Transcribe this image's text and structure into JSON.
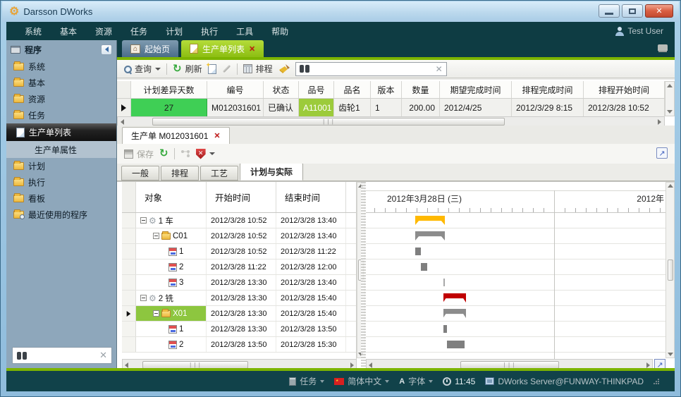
{
  "window": {
    "title": "Darsson DWorks",
    "user": "Test User"
  },
  "menu": {
    "items": [
      "系统",
      "基本",
      "资源",
      "任务",
      "计划",
      "执行",
      "工具",
      "帮助"
    ]
  },
  "sidebar": {
    "header": "程序",
    "items": [
      {
        "label": "系统"
      },
      {
        "label": "基本"
      },
      {
        "label": "资源"
      },
      {
        "label": "任务"
      },
      {
        "label": "生产单列表",
        "selected": true
      },
      {
        "label": "生产单属性",
        "child": true
      },
      {
        "label": "计划"
      },
      {
        "label": "执行"
      },
      {
        "label": "看板"
      },
      {
        "label": "最近使用的程序"
      }
    ]
  },
  "tabs": {
    "home": "起始页",
    "active": "生产单列表"
  },
  "toolbar": {
    "query": "查询",
    "refresh": "刷新",
    "schedule": "排程",
    "search_value": ""
  },
  "grid": {
    "columns": [
      "计划差异天数",
      "编号",
      "状态",
      "品号",
      "品名",
      "版本",
      "数量",
      "期望完成时间",
      "排程完成时间",
      "排程开始时间"
    ],
    "row": {
      "diff_days": "27",
      "code": "M012031601",
      "status": "已确认",
      "item_no": "A11001",
      "item_name": "齿轮1",
      "version": "1",
      "qty": "200.00",
      "expect_finish": "2012/4/25",
      "sched_finish": "2012/3/29 8:15",
      "sched_start": "2012/3/28 10:52"
    }
  },
  "detail": {
    "tab_title": "生产单  M012031601",
    "save_label": "保存",
    "tabs": [
      "一般",
      "排程",
      "工艺",
      "计划与实际"
    ],
    "active_tab": "计划与实际"
  },
  "tree": {
    "columns": [
      "对象",
      "开始时间",
      "结束时间"
    ],
    "rows": [
      {
        "label": "1 车",
        "start": "2012/3/28 10:52",
        "end": "2012/3/28 13:40"
      },
      {
        "label": "C01",
        "start": "2012/3/28 10:52",
        "end": "2012/3/28 13:40"
      },
      {
        "label": "1",
        "start": "2012/3/28 10:52",
        "end": "2012/3/28 11:22"
      },
      {
        "label": "2",
        "start": "2012/3/28 11:22",
        "end": "2012/3/28 12:00"
      },
      {
        "label": "3",
        "start": "2012/3/28 13:30",
        "end": "2012/3/28 13:40"
      },
      {
        "label": "2 铣",
        "start": "2012/3/28 13:30",
        "end": "2012/3/28 15:40"
      },
      {
        "label": "X01",
        "start": "2012/3/28 13:30",
        "end": "2012/3/28 15:40",
        "selected": true
      },
      {
        "label": "1",
        "start": "2012/3/28 13:30",
        "end": "2012/3/28 13:50"
      },
      {
        "label": "2",
        "start": "2012/3/28 13:50",
        "end": "2012/3/28 15:30"
      }
    ]
  },
  "gantt": {
    "header_day1": "2012年3月28日 (三)",
    "header_day2": "2012年",
    "bars": [
      {
        "row": 0,
        "start": "10:52",
        "end": "13:40",
        "type": "summary",
        "color": "#FFB900"
      },
      {
        "row": 1,
        "start": "10:52",
        "end": "13:40",
        "type": "summary",
        "color": "#8C8C8C"
      },
      {
        "row": 2,
        "start": "10:52",
        "end": "11:22",
        "type": "task",
        "color": "#7F7F7F"
      },
      {
        "row": 3,
        "start": "11:22",
        "end": "12:00",
        "type": "task",
        "color": "#7F7F7F"
      },
      {
        "row": 4,
        "start": "13:30",
        "end": "13:40",
        "type": "task",
        "color": "#A8A8A8"
      },
      {
        "row": 5,
        "start": "13:30",
        "end": "15:40",
        "type": "summary",
        "color": "#C00000"
      },
      {
        "row": 6,
        "start": "13:30",
        "end": "15:40",
        "type": "summary",
        "color": "#8C8C8C"
      },
      {
        "row": 7,
        "start": "13:30",
        "end": "13:50",
        "type": "task",
        "color": "#7F7F7F"
      },
      {
        "row": 8,
        "start": "13:50",
        "end": "15:30",
        "type": "task",
        "color": "#7F7F7F"
      }
    ]
  },
  "statusbar": {
    "task": "任务",
    "language": "简体中文",
    "font": "字体",
    "time": "11:45",
    "server": "DWorks Server@FUNWAY-THINKPAD",
    "font_badge": "A"
  },
  "colors": {
    "accent_green": "#7cb400",
    "tab_green": "#9ccb1e",
    "selection_green": "#8dc63f",
    "cell_green": "#3fcf55",
    "item_green": "#9ccb3b",
    "bar_yellow": "#FFB900",
    "bar_red": "#C00000",
    "bar_gray": "#8C8C8C",
    "titlebar_teal": "#0e3c43"
  }
}
